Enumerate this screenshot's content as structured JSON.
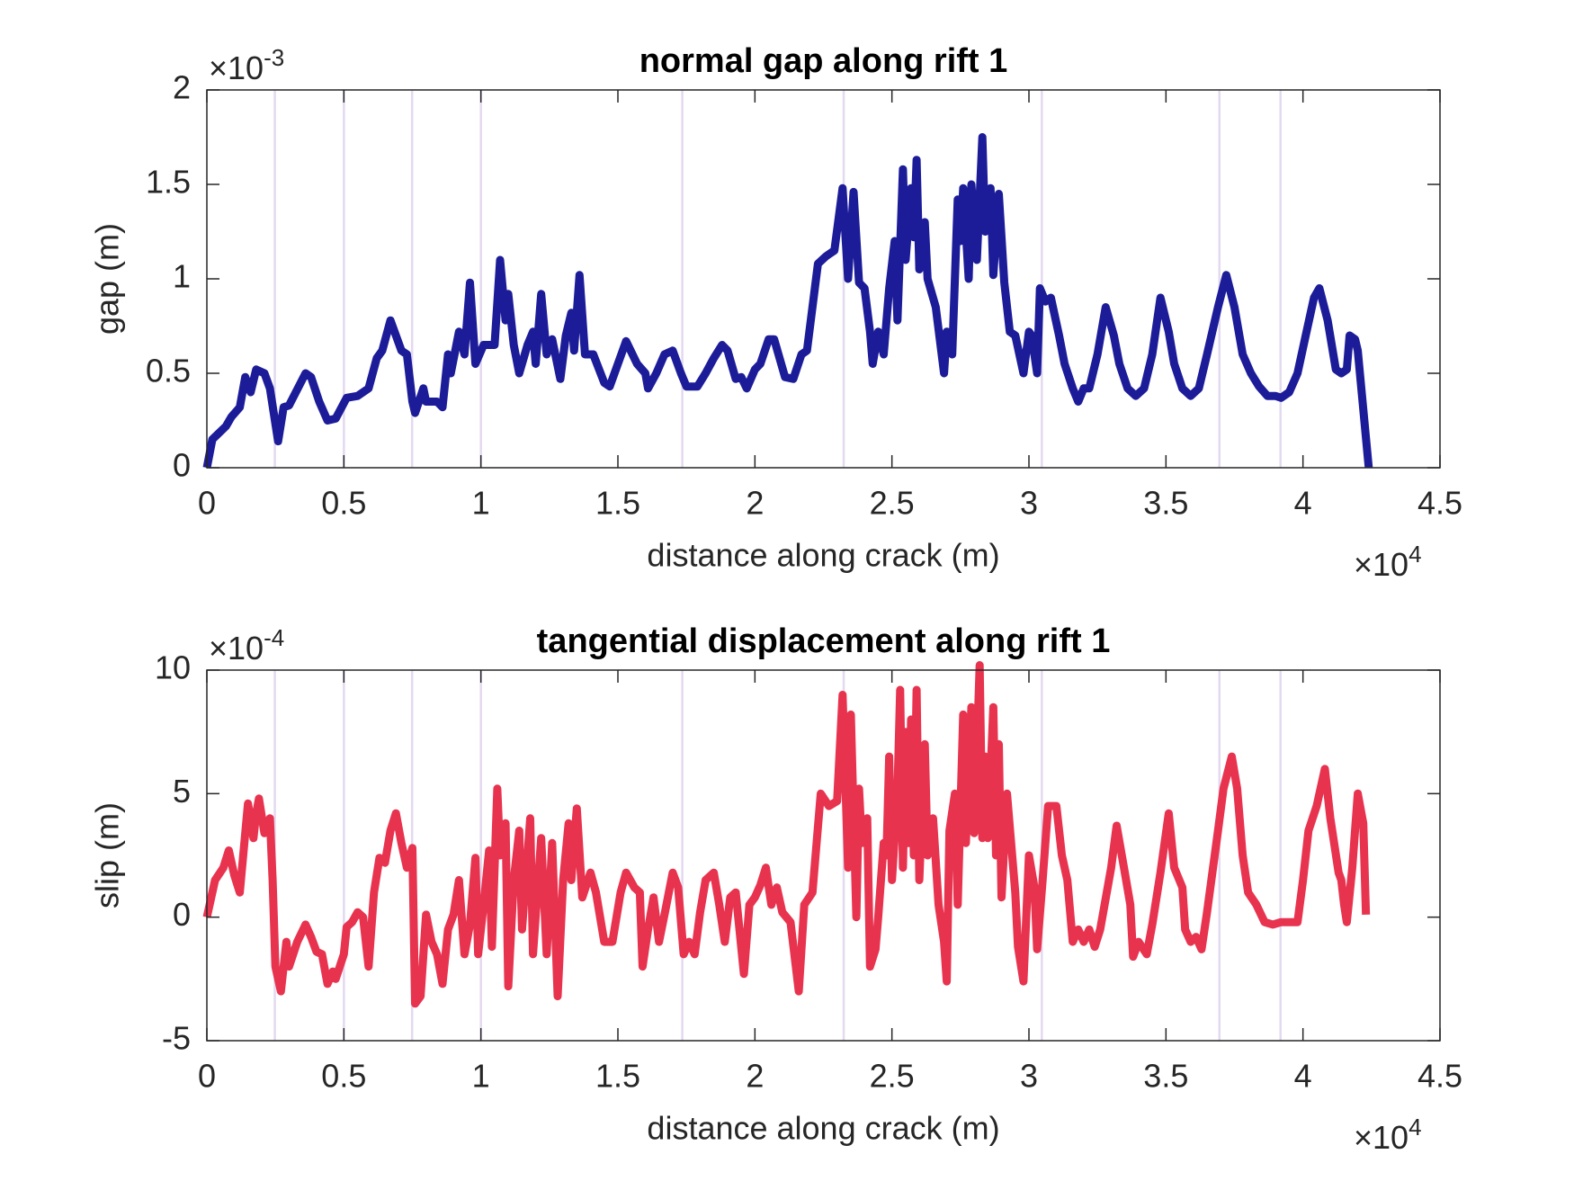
{
  "chart_data": [
    {
      "type": "line",
      "title": "normal gap along rift 1",
      "xlabel": "distance along crack (m)",
      "ylabel": "gap (m)",
      "x_multiplier": {
        "base": "×10",
        "exponent": "4"
      },
      "y_multiplier": {
        "base": "×10",
        "exponent": "-3"
      },
      "xlim": [
        0,
        4.5
      ],
      "xticks": [
        0,
        0.5,
        1,
        1.5,
        2,
        2.5,
        3,
        3.5,
        4,
        4.5
      ],
      "ylim": [
        0,
        2
      ],
      "yticks": [
        0,
        0.5,
        1,
        1.5,
        2
      ],
      "vlines": [
        0.248,
        0.5,
        0.749,
        1.0,
        1.735,
        2.324,
        3.047,
        3.695,
        3.918
      ],
      "vline_color": "#e3d9f0",
      "color": "#1c1c99",
      "x": [
        0,
        0.02,
        0.07,
        0.09,
        0.12,
        0.14,
        0.16,
        0.18,
        0.21,
        0.23,
        0.26,
        0.28,
        0.3,
        0.36,
        0.38,
        0.41,
        0.44,
        0.47,
        0.51,
        0.55,
        0.59,
        0.62,
        0.64,
        0.67,
        0.71,
        0.73,
        0.75,
        0.76,
        0.79,
        0.8,
        0.84,
        0.86,
        0.88,
        0.89,
        0.92,
        0.94,
        0.96,
        0.98,
        1.01,
        1.05,
        1.07,
        1.09,
        1.1,
        1.12,
        1.14,
        1.17,
        1.19,
        1.2,
        1.22,
        1.24,
        1.26,
        1.29,
        1.31,
        1.33,
        1.34,
        1.36,
        1.38,
        1.41,
        1.45,
        1.47,
        1.5,
        1.53,
        1.57,
        1.6,
        1.61,
        1.64,
        1.67,
        1.7,
        1.73,
        1.75,
        1.79,
        1.82,
        1.85,
        1.88,
        1.9,
        1.93,
        1.95,
        1.97,
        2.0,
        2.02,
        2.05,
        2.07,
        2.11,
        2.14,
        2.17,
        2.19,
        2.23,
        2.26,
        2.29,
        2.32,
        2.34,
        2.36,
        2.38,
        2.4,
        2.42,
        2.43,
        2.45,
        2.47,
        2.49,
        2.51,
        2.52,
        2.54,
        2.55,
        2.57,
        2.58,
        2.59,
        2.6,
        2.62,
        2.63,
        2.66,
        2.69,
        2.7,
        2.72,
        2.74,
        2.75,
        2.76,
        2.78,
        2.79,
        2.81,
        2.83,
        2.84,
        2.86,
        2.87,
        2.89,
        2.91,
        2.93,
        2.95,
        2.98,
        3.0,
        3.01,
        3.03,
        3.04,
        3.06,
        3.08,
        3.11,
        3.13,
        3.16,
        3.18,
        3.2,
        3.22,
        3.25,
        3.28,
        3.31,
        3.33,
        3.36,
        3.39,
        3.42,
        3.45,
        3.48,
        3.51,
        3.53,
        3.56,
        3.59,
        3.62,
        3.65,
        3.69,
        3.72,
        3.75,
        3.78,
        3.81,
        3.84,
        3.87,
        3.9,
        3.92,
        3.95,
        3.98,
        4.01,
        4.04,
        4.06,
        4.09,
        4.12,
        4.14,
        4.16,
        4.17,
        4.19,
        4.2,
        4.24
      ],
      "values": [
        0,
        0.15,
        0.22,
        0.27,
        0.32,
        0.48,
        0.4,
        0.52,
        0.5,
        0.42,
        0.14,
        0.32,
        0.33,
        0.5,
        0.48,
        0.35,
        0.25,
        0.26,
        0.37,
        0.38,
        0.42,
        0.58,
        0.62,
        0.78,
        0.62,
        0.6,
        0.35,
        0.29,
        0.42,
        0.35,
        0.35,
        0.32,
        0.6,
        0.5,
        0.72,
        0.6,
        0.98,
        0.55,
        0.65,
        0.65,
        1.1,
        0.78,
        0.92,
        0.65,
        0.5,
        0.65,
        0.72,
        0.55,
        0.92,
        0.6,
        0.68,
        0.47,
        0.7,
        0.82,
        0.62,
        1.02,
        0.6,
        0.6,
        0.45,
        0.43,
        0.55,
        0.67,
        0.55,
        0.5,
        0.42,
        0.5,
        0.6,
        0.62,
        0.5,
        0.43,
        0.43,
        0.5,
        0.58,
        0.65,
        0.62,
        0.47,
        0.48,
        0.42,
        0.52,
        0.55,
        0.68,
        0.68,
        0.48,
        0.47,
        0.6,
        0.62,
        1.08,
        1.12,
        1.15,
        1.48,
        1.0,
        1.46,
        0.98,
        0.95,
        0.72,
        0.55,
        0.72,
        0.6,
        0.95,
        1.2,
        0.78,
        1.58,
        1.1,
        1.48,
        1.22,
        1.63,
        1.05,
        1.3,
        1.0,
        0.85,
        0.5,
        0.72,
        0.6,
        1.42,
        1.2,
        1.48,
        1.0,
        1.5,
        1.1,
        1.75,
        1.25,
        1.48,
        1.02,
        1.45,
        0.98,
        0.72,
        0.7,
        0.5,
        0.72,
        0.7,
        0.5,
        0.95,
        0.88,
        0.9,
        0.7,
        0.55,
        0.42,
        0.35,
        0.42,
        0.42,
        0.6,
        0.85,
        0.7,
        0.55,
        0.42,
        0.38,
        0.42,
        0.6,
        0.9,
        0.72,
        0.55,
        0.42,
        0.38,
        0.42,
        0.6,
        0.85,
        1.02,
        0.85,
        0.6,
        0.5,
        0.43,
        0.38,
        0.38,
        0.37,
        0.4,
        0.5,
        0.7,
        0.9,
        0.95,
        0.78,
        0.52,
        0.5,
        0.52,
        0.7,
        0.68,
        0.62,
        0
      ]
    },
    {
      "type": "line",
      "title": "tangential displacement along rift 1",
      "xlabel": "distance along crack (m)",
      "ylabel": "slip (m)",
      "x_multiplier": {
        "base": "×10",
        "exponent": "4"
      },
      "y_multiplier": {
        "base": "×10",
        "exponent": "-4"
      },
      "xlim": [
        0,
        4.5
      ],
      "xticks": [
        0,
        0.5,
        1,
        1.5,
        2,
        2.5,
        3,
        3.5,
        4,
        4.5
      ],
      "ylim": [
        -5,
        10
      ],
      "yticks": [
        -5,
        0,
        5,
        10
      ],
      "vlines": [
        0.248,
        0.5,
        0.749,
        1.0,
        1.735,
        2.324,
        3.047,
        3.695,
        3.918
      ],
      "vline_color": "#e3d9f0",
      "color": "#e8334f",
      "x": [
        0,
        0.03,
        0.06,
        0.08,
        0.1,
        0.12,
        0.15,
        0.17,
        0.18,
        0.19,
        0.21,
        0.23,
        0.24,
        0.25,
        0.27,
        0.29,
        0.3,
        0.33,
        0.36,
        0.38,
        0.4,
        0.42,
        0.44,
        0.46,
        0.47,
        0.5,
        0.51,
        0.53,
        0.55,
        0.57,
        0.59,
        0.61,
        0.63,
        0.65,
        0.67,
        0.69,
        0.71,
        0.73,
        0.75,
        0.76,
        0.78,
        0.8,
        0.82,
        0.84,
        0.86,
        0.88,
        0.9,
        0.92,
        0.94,
        0.96,
        0.98,
        0.99,
        1.01,
        1.03,
        1.04,
        1.06,
        1.07,
        1.09,
        1.1,
        1.12,
        1.14,
        1.15,
        1.18,
        1.19,
        1.22,
        1.24,
        1.26,
        1.28,
        1.3,
        1.32,
        1.33,
        1.35,
        1.37,
        1.4,
        1.42,
        1.45,
        1.48,
        1.51,
        1.53,
        1.56,
        1.58,
        1.59,
        1.61,
        1.63,
        1.65,
        1.67,
        1.7,
        1.72,
        1.74,
        1.76,
        1.78,
        1.8,
        1.82,
        1.85,
        1.87,
        1.89,
        1.91,
        1.93,
        1.96,
        1.98,
        2,
        2.02,
        2.04,
        2.06,
        2.08,
        2.1,
        2.13,
        2.16,
        2.18,
        2.21,
        2.24,
        2.27,
        2.3,
        2.32,
        2.34,
        2.35,
        2.37,
        2.38,
        2.39,
        2.41,
        2.42,
        2.44,
        2.45,
        2.47,
        2.48,
        2.49,
        2.5,
        2.52,
        2.53,
        2.54,
        2.55,
        2.56,
        2.57,
        2.58,
        2.59,
        2.6,
        2.62,
        2.63,
        2.65,
        2.67,
        2.69,
        2.7,
        2.71,
        2.73,
        2.74,
        2.76,
        2.77,
        2.79,
        2.8,
        2.82,
        2.83,
        2.84,
        2.85,
        2.87,
        2.88,
        2.89,
        2.9,
        2.92,
        2.95,
        2.96,
        2.98,
        3,
        3.02,
        3.03,
        3.05,
        3.07,
        3.1,
        3.12,
        3.14,
        3.16,
        3.18,
        3.2,
        3.22,
        3.24,
        3.26,
        3.3,
        3.32,
        3.35,
        3.37,
        3.38,
        3.4,
        3.43,
        3.45,
        3.48,
        3.51,
        3.53,
        3.56,
        3.57,
        3.59,
        3.61,
        3.63,
        3.65,
        3.69,
        3.71,
        3.74,
        3.76,
        3.78,
        3.8,
        3.83,
        3.86,
        3.89,
        3.92,
        3.95,
        3.98,
        4,
        4.02,
        4.05,
        4.08,
        4.1,
        4.13,
        4.14,
        4.15,
        4.16,
        4.18,
        4.2,
        4.22,
        4.23
      ],
      "values": [
        0,
        1.5,
        2,
        2.7,
        1.7,
        1,
        4.6,
        3.2,
        4.2,
        4.8,
        3.4,
        4,
        1.5,
        -2,
        -3,
        -1,
        -2,
        -1,
        -0.3,
        -0.8,
        -1.4,
        -1.5,
        -2.7,
        -2.2,
        -2.5,
        -1.5,
        -0.4,
        -0.2,
        0.2,
        0,
        -2,
        1,
        2.4,
        2.2,
        3.5,
        4.2,
        3,
        2,
        2.8,
        -3.5,
        -3.2,
        0.1,
        -1,
        -1.5,
        -2.7,
        -0.5,
        0.1,
        1.5,
        -1.5,
        -0.3,
        2.4,
        -1.5,
        0.5,
        2.7,
        -1.2,
        5.2,
        2.5,
        3.8,
        -2.8,
        1.5,
        3.5,
        -0.5,
        4,
        -1.5,
        3.2,
        -1.5,
        3,
        -3.2,
        1.5,
        3.8,
        1.5,
        4.4,
        0.8,
        1.8,
        1,
        -1,
        -1,
        1,
        1.8,
        1.2,
        1,
        -2,
        -0.5,
        0.8,
        -1,
        0.1,
        1.8,
        1.2,
        -1.5,
        -1,
        -1.5,
        0.2,
        1.5,
        1.8,
        0.5,
        -1,
        0.8,
        1,
        -2.3,
        0.5,
        0.8,
        1.3,
        2,
        0.5,
        1.2,
        0.2,
        -0.2,
        -3,
        0.5,
        1,
        5,
        4.5,
        4.7,
        9,
        2,
        8.2,
        0,
        5.2,
        3,
        4,
        -2,
        -1.3,
        0,
        3,
        2.5,
        6.5,
        1.5,
        5,
        9.2,
        2,
        7.5,
        3,
        8,
        2.5,
        9.2,
        1.5,
        7,
        2.5,
        4,
        0.5,
        -1,
        -2.6,
        3.5,
        5,
        0.5,
        8.2,
        3,
        8.5,
        3.4,
        10.2,
        3.2,
        6.5,
        3.2,
        8.5,
        2.5,
        7,
        0.8,
        5,
        1,
        -1.2,
        -2.6,
        2.5,
        1.2,
        -1.3,
        1.5,
        4.5,
        4.5,
        2.5,
        1.5,
        -1,
        -0.5,
        -1,
        -0.5,
        -1.2,
        -0.5,
        2,
        3.7,
        1.8,
        0.5,
        -1.6,
        -1,
        -1.5,
        -0.3,
        1.8,
        4.2,
        2,
        1.2,
        -0.5,
        -1,
        -0.8,
        -1.3,
        0.2,
        3.5,
        5.2,
        6.5,
        5.2,
        2.5,
        1,
        0.5,
        -0.2,
        -0.3,
        -0.2,
        -0.2,
        -0.2,
        1.5,
        3.5,
        4.5,
        6,
        4,
        1.8,
        1.5,
        0.5,
        -0.2,
        2,
        5,
        3.8,
        0.1
      ]
    }
  ]
}
